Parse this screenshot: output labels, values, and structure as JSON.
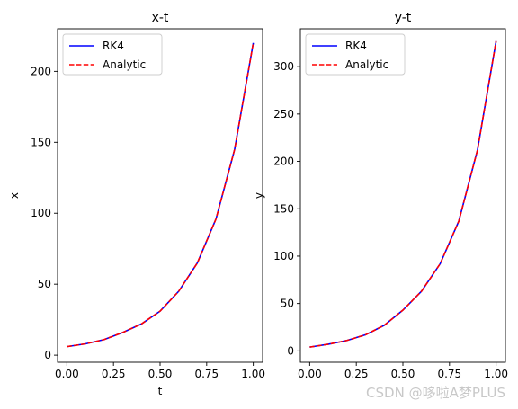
{
  "watermark": "CSDN @哆啦A梦PLUS",
  "chart_data": [
    {
      "type": "line",
      "title": "x-t",
      "xlabel": "t",
      "ylabel": "x",
      "xlim": [
        -0.05,
        1.05
      ],
      "ylim": [
        -5,
        230
      ],
      "xticks": [
        "0.00",
        "0.25",
        "0.50",
        "0.75",
        "1.00"
      ],
      "xtick_values": [
        0,
        0.25,
        0.5,
        0.75,
        1.0
      ],
      "yticks": [
        "0",
        "50",
        "100",
        "150",
        "200"
      ],
      "ytick_values": [
        0,
        50,
        100,
        150,
        200
      ],
      "grid": false,
      "legend": "top-left",
      "x": [
        0,
        0.1,
        0.2,
        0.3,
        0.4,
        0.5,
        0.6,
        0.7,
        0.8,
        0.9,
        1.0
      ],
      "series": [
        {
          "name": "RK4",
          "color": "#0000ff",
          "style": "solid",
          "values": [
            6,
            8,
            11,
            16,
            22,
            31,
            45,
            65,
            96,
            145,
            220
          ]
        },
        {
          "name": "Analytic",
          "color": "#ff0000",
          "style": "dashed",
          "values": [
            6,
            8,
            11,
            16,
            22,
            31,
            45,
            65,
            96,
            145,
            220
          ]
        }
      ]
    },
    {
      "type": "line",
      "title": "y-t",
      "xlabel": "t",
      "ylabel": "y",
      "xlim": [
        -0.05,
        1.05
      ],
      "ylim": [
        -12,
        340
      ],
      "xticks": [
        "0.00",
        "0.25",
        "0.50",
        "0.75",
        "1.00"
      ],
      "xtick_values": [
        0,
        0.25,
        0.5,
        0.75,
        1.0
      ],
      "yticks": [
        "0",
        "50",
        "100",
        "150",
        "200",
        "250",
        "300"
      ],
      "ytick_values": [
        0,
        50,
        100,
        150,
        200,
        250,
        300
      ],
      "grid": false,
      "legend": "top-left",
      "x": [
        0,
        0.1,
        0.2,
        0.3,
        0.4,
        0.5,
        0.6,
        0.7,
        0.8,
        0.9,
        1.0
      ],
      "series": [
        {
          "name": "RK4",
          "color": "#0000ff",
          "style": "solid",
          "values": [
            4,
            7,
            11,
            17,
            27,
            43,
            63,
            92,
            137,
            212,
            327
          ]
        },
        {
          "name": "Analytic",
          "color": "#ff0000",
          "style": "dashed",
          "values": [
            4,
            7,
            11,
            17,
            27,
            43,
            63,
            92,
            137,
            212,
            327
          ]
        }
      ]
    }
  ]
}
